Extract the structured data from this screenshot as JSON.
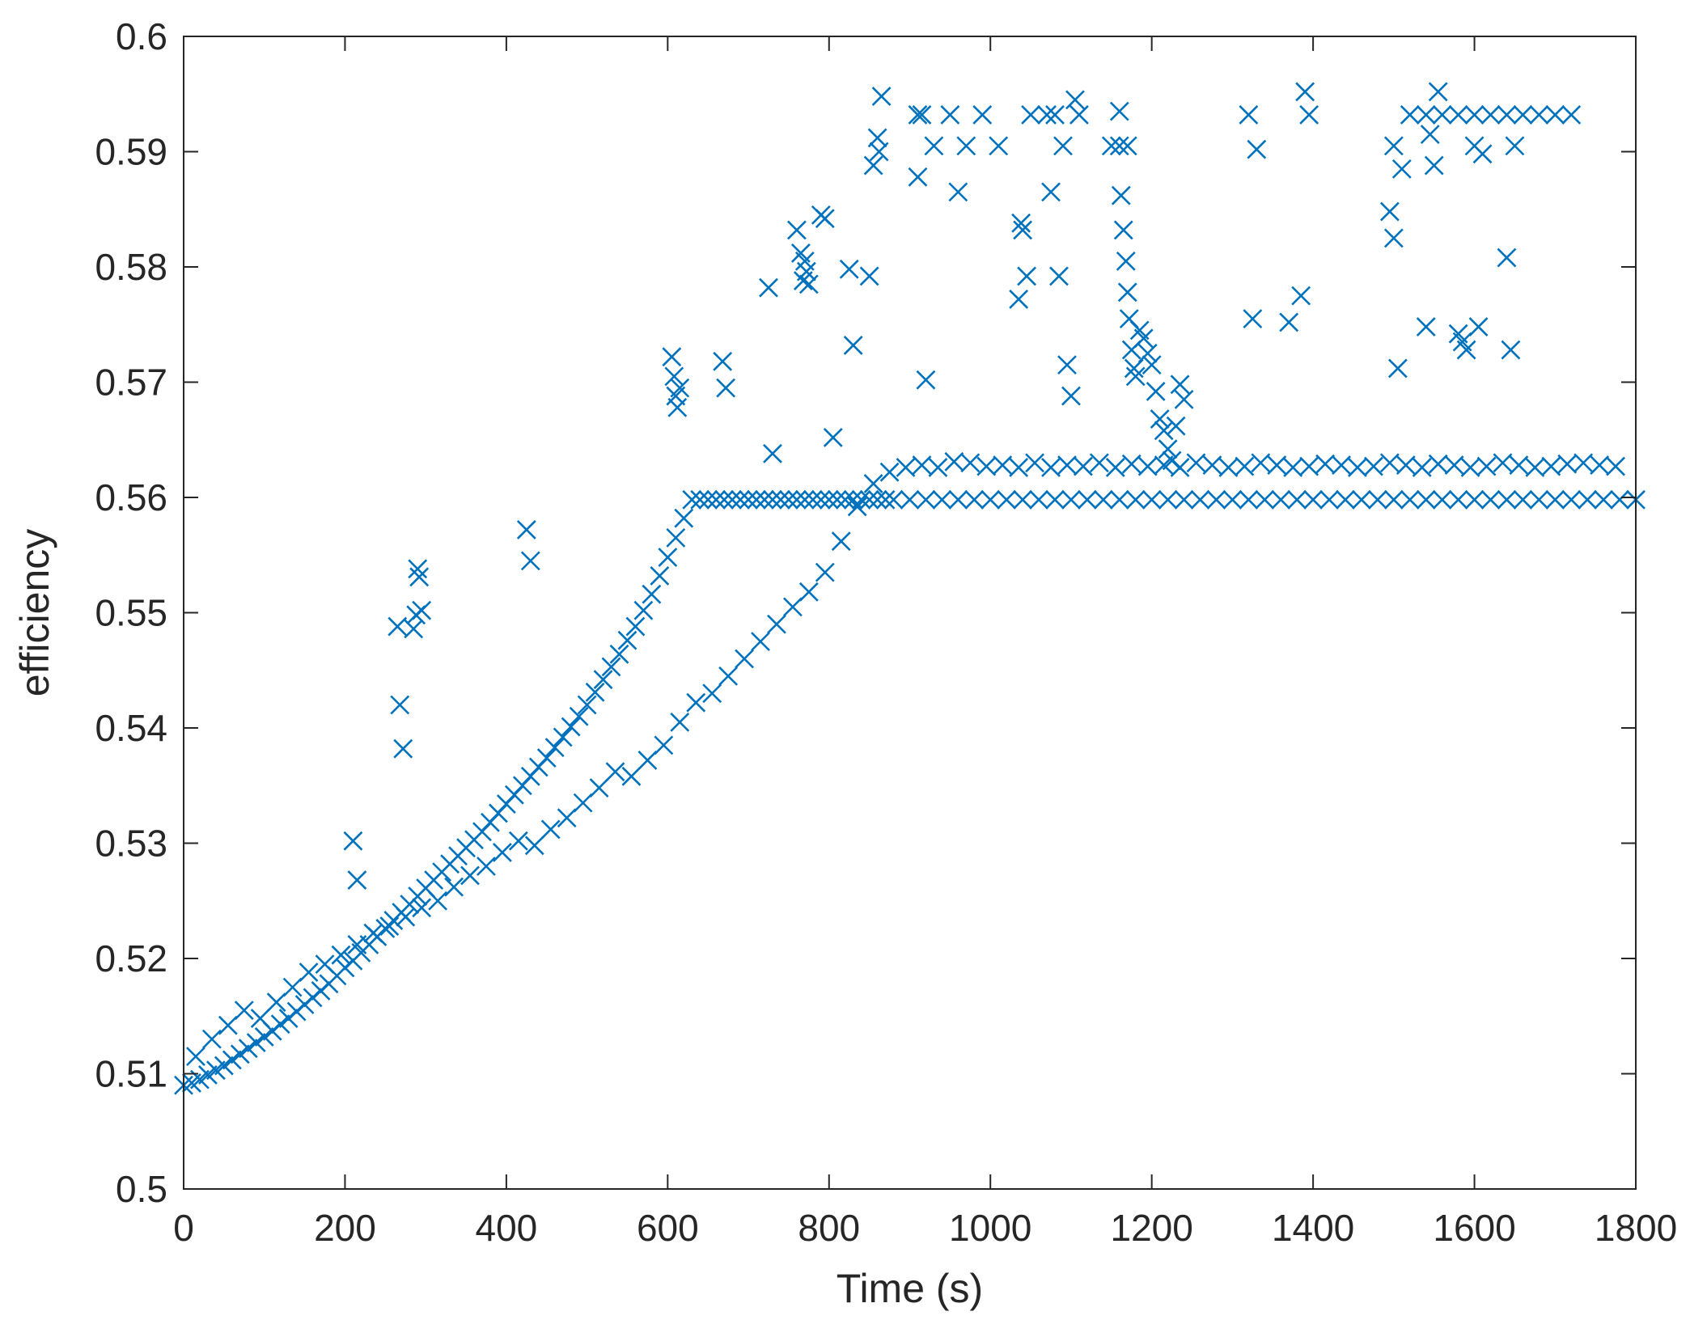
{
  "chart_data": {
    "type": "scatter",
    "title": "",
    "xlabel": "Time (s)",
    "ylabel": "efficiency",
    "xlim": [
      0,
      1800
    ],
    "ylim": [
      0.5,
      0.6
    ],
    "xticks": [
      "0",
      "200",
      "400",
      "600",
      "800",
      "1000",
      "1200",
      "1400",
      "1600",
      "1800"
    ],
    "yticks": [
      "0.5",
      "0.51",
      "0.52",
      "0.53",
      "0.54",
      "0.55",
      "0.56",
      "0.57",
      "0.58",
      "0.59",
      "0.6"
    ],
    "grid": false,
    "marker": "x",
    "marker_color": "#0072BD",
    "series": [
      {
        "x": [
          0,
          10,
          20,
          30,
          40,
          50,
          60,
          70,
          80,
          90,
          100,
          110,
          120,
          130,
          140,
          150,
          160,
          170,
          180,
          190,
          200,
          210,
          220,
          230,
          240,
          250,
          260,
          270,
          280,
          290,
          300,
          310,
          320,
          330,
          340,
          350,
          360,
          370,
          380,
          390,
          400,
          410,
          420,
          430,
          440,
          450,
          460,
          470,
          480,
          490,
          500,
          510,
          520,
          530,
          540,
          550,
          560,
          570,
          580,
          590,
          600,
          610,
          620,
          630,
          640,
          650,
          660,
          670,
          680,
          690,
          700,
          710,
          720,
          730,
          740,
          750,
          760,
          770,
          780,
          790,
          800,
          810,
          820,
          830,
          840,
          850,
          860,
          870,
          880,
          900,
          920,
          940,
          960,
          980,
          1000,
          1020,
          1040,
          1060,
          1080,
          1100,
          1120,
          1140,
          1160,
          1180,
          1200,
          1220,
          1240,
          1260,
          1280,
          1300,
          1320,
          1340,
          1360,
          1380,
          1400,
          1420,
          1440,
          1460,
          1480,
          1500,
          1520,
          1540,
          1560,
          1580,
          1600,
          1620,
          1640,
          1660,
          1680,
          1700,
          1720,
          1740,
          1760,
          1780,
          1800
        ],
        "y": [
          0.509,
          0.5092,
          0.5095,
          0.5099,
          0.5103,
          0.5107,
          0.5112,
          0.5117,
          0.5122,
          0.5127,
          0.5132,
          0.5137,
          0.5143,
          0.5148,
          0.5154,
          0.516,
          0.5166,
          0.5172,
          0.5178,
          0.5185,
          0.5192,
          0.5198,
          0.5205,
          0.5212,
          0.5219,
          0.5226,
          0.5233,
          0.524,
          0.5247,
          0.5254,
          0.5261,
          0.5268,
          0.5275,
          0.5282,
          0.5289,
          0.5296,
          0.5303,
          0.531,
          0.5318,
          0.5326,
          0.5334,
          0.5342,
          0.535,
          0.5358,
          0.5366,
          0.5374,
          0.5383,
          0.5392,
          0.5401,
          0.541,
          0.542,
          0.5431,
          0.5442,
          0.5453,
          0.5464,
          0.5476,
          0.5488,
          0.5502,
          0.5516,
          0.5532,
          0.5548,
          0.5565,
          0.5582,
          0.5598,
          0.5598,
          0.5598,
          0.5598,
          0.5598,
          0.5598,
          0.5598,
          0.5598,
          0.5598,
          0.5598,
          0.5598,
          0.5598,
          0.5598,
          0.5598,
          0.5598,
          0.5598,
          0.5598,
          0.5598,
          0.5598,
          0.5598,
          0.5598,
          0.5598,
          0.5598,
          0.5598,
          0.5598,
          0.5598,
          0.5598,
          0.5598,
          0.5598,
          0.5598,
          0.5598,
          0.5598,
          0.5598,
          0.5598,
          0.5598,
          0.5598,
          0.5598,
          0.5598,
          0.5598,
          0.5598,
          0.5598,
          0.5598,
          0.5598,
          0.5598,
          0.5598,
          0.5598,
          0.5598,
          0.5598,
          0.5598,
          0.5598,
          0.5598,
          0.5598,
          0.5598,
          0.5598,
          0.5598,
          0.5598,
          0.5598,
          0.5598,
          0.5598,
          0.5598,
          0.5598,
          0.5598,
          0.5598,
          0.5598,
          0.5598,
          0.5598,
          0.5598,
          0.5598,
          0.5598,
          0.5598,
          0.5598,
          0.5598
        ]
      },
      {
        "x": [
          15,
          35,
          55,
          75,
          95,
          115,
          135,
          155,
          175,
          195,
          215,
          235,
          255,
          275,
          295,
          315,
          335,
          355,
          375,
          395,
          415,
          435,
          455,
          475,
          495,
          515,
          535,
          555,
          575,
          595,
          615,
          635,
          655,
          675,
          695,
          715,
          735,
          755,
          775,
          795,
          815,
          835,
          855,
          875,
          895,
          915,
          935,
          955,
          975,
          995,
          1015,
          1035,
          1055,
          1075,
          1095,
          1115,
          1135,
          1155,
          1175,
          1195,
          1215,
          1235,
          1255,
          1275,
          1295,
          1315,
          1335,
          1355,
          1375,
          1395,
          1415,
          1435,
          1455,
          1475,
          1495,
          1515,
          1535,
          1555,
          1575,
          1595,
          1615,
          1635,
          1655,
          1675,
          1695,
          1715,
          1735,
          1755,
          1775
        ],
        "y": [
          0.5115,
          0.513,
          0.5142,
          0.5155,
          0.5148,
          0.5162,
          0.5175,
          0.5188,
          0.5195,
          0.5203,
          0.5212,
          0.5222,
          0.5228,
          0.5236,
          0.5244,
          0.525,
          0.5262,
          0.5272,
          0.528,
          0.5292,
          0.5302,
          0.5298,
          0.5312,
          0.5322,
          0.5335,
          0.5348,
          0.5362,
          0.5358,
          0.5372,
          0.5385,
          0.5405,
          0.5422,
          0.543,
          0.5445,
          0.546,
          0.5475,
          0.549,
          0.5505,
          0.5518,
          0.5535,
          0.5562,
          0.5592,
          0.5612,
          0.5622,
          0.5626,
          0.5628,
          0.5626,
          0.5631,
          0.563,
          0.5627,
          0.5628,
          0.5626,
          0.563,
          0.5626,
          0.5628,
          0.5627,
          0.563,
          0.5626,
          0.5629,
          0.5627,
          0.5628,
          0.5626,
          0.563,
          0.5628,
          0.5626,
          0.5627,
          0.563,
          0.5628,
          0.5626,
          0.5627,
          0.5629,
          0.5628,
          0.5626,
          0.5627,
          0.563,
          0.5628,
          0.5626,
          0.5629,
          0.5628,
          0.5626,
          0.5627,
          0.563,
          0.5628,
          0.5626,
          0.5627,
          0.5629,
          0.563,
          0.5628,
          0.5627
        ]
      },
      {
        "x": [
          910,
          930,
          950,
          970,
          990,
          1010,
          1050,
          1070,
          1090,
          1150,
          1160,
          1170,
          1500,
          1520,
          1540,
          1560,
          1580,
          1600,
          1620,
          1640,
          1660,
          1680,
          1700,
          1720
        ],
        "y": [
          0.5932,
          0.5905,
          0.5932,
          0.5905,
          0.5932,
          0.5905,
          0.5932,
          0.5932,
          0.5905,
          0.5905,
          0.5905,
          0.5905,
          0.5905,
          0.5932,
          0.5932,
          0.5932,
          0.5932,
          0.5932,
          0.5932,
          0.5932,
          0.5932,
          0.5932,
          0.5932,
          0.5932
        ]
      },
      {
        "x": [
          210,
          215,
          265,
          268,
          272,
          285,
          288,
          290,
          292,
          295,
          425,
          430,
          605,
          608,
          610,
          612,
          615,
          668,
          672,
          725,
          730,
          760,
          765,
          768,
          770,
          772,
          775,
          790,
          795,
          805,
          825,
          830,
          850,
          855,
          860,
          862,
          865,
          910,
          915,
          920,
          960,
          1035,
          1038,
          1040,
          1045,
          1075,
          1080,
          1085,
          1095,
          1100,
          1105,
          1110,
          1160,
          1162,
          1165,
          1168,
          1170,
          1172,
          1175,
          1178,
          1180,
          1185,
          1190,
          1195,
          1200,
          1205,
          1210,
          1215,
          1220,
          1225,
          1230,
          1235,
          1240,
          1320,
          1325,
          1330,
          1370,
          1385,
          1390,
          1395,
          1495,
          1500,
          1505,
          1510,
          1540,
          1545,
          1550,
          1555,
          1580,
          1585,
          1590,
          1600,
          1605,
          1610,
          1640,
          1645,
          1650
        ],
        "y": [
          0.5302,
          0.5268,
          0.5488,
          0.542,
          0.5382,
          0.5486,
          0.5498,
          0.5538,
          0.5531,
          0.5502,
          0.5572,
          0.5545,
          0.5722,
          0.5705,
          0.5688,
          0.5678,
          0.5695,
          0.5718,
          0.5695,
          0.5782,
          0.5638,
          0.5832,
          0.5812,
          0.5788,
          0.5805,
          0.5796,
          0.5785,
          0.5845,
          0.5842,
          0.5652,
          0.5798,
          0.5732,
          0.5792,
          0.5888,
          0.5912,
          0.59,
          0.5948,
          0.5878,
          0.5932,
          0.5702,
          0.5865,
          0.5772,
          0.5838,
          0.5832,
          0.5792,
          0.5865,
          0.5932,
          0.5792,
          0.5715,
          0.5688,
          0.5945,
          0.5932,
          0.5935,
          0.5862,
          0.5832,
          0.5805,
          0.5778,
          0.5755,
          0.5728,
          0.5712,
          0.5705,
          0.5745,
          0.5738,
          0.5725,
          0.5715,
          0.5692,
          0.5668,
          0.5658,
          0.5642,
          0.5632,
          0.5662,
          0.5698,
          0.5685,
          0.5932,
          0.5755,
          0.5902,
          0.5752,
          0.5775,
          0.5952,
          0.5932,
          0.5848,
          0.5825,
          0.5712,
          0.5885,
          0.5748,
          0.5915,
          0.5888,
          0.5952,
          0.5742,
          0.5735,
          0.5728,
          0.5905,
          0.5748,
          0.5898,
          0.5808,
          0.5728,
          0.5905
        ]
      }
    ]
  }
}
